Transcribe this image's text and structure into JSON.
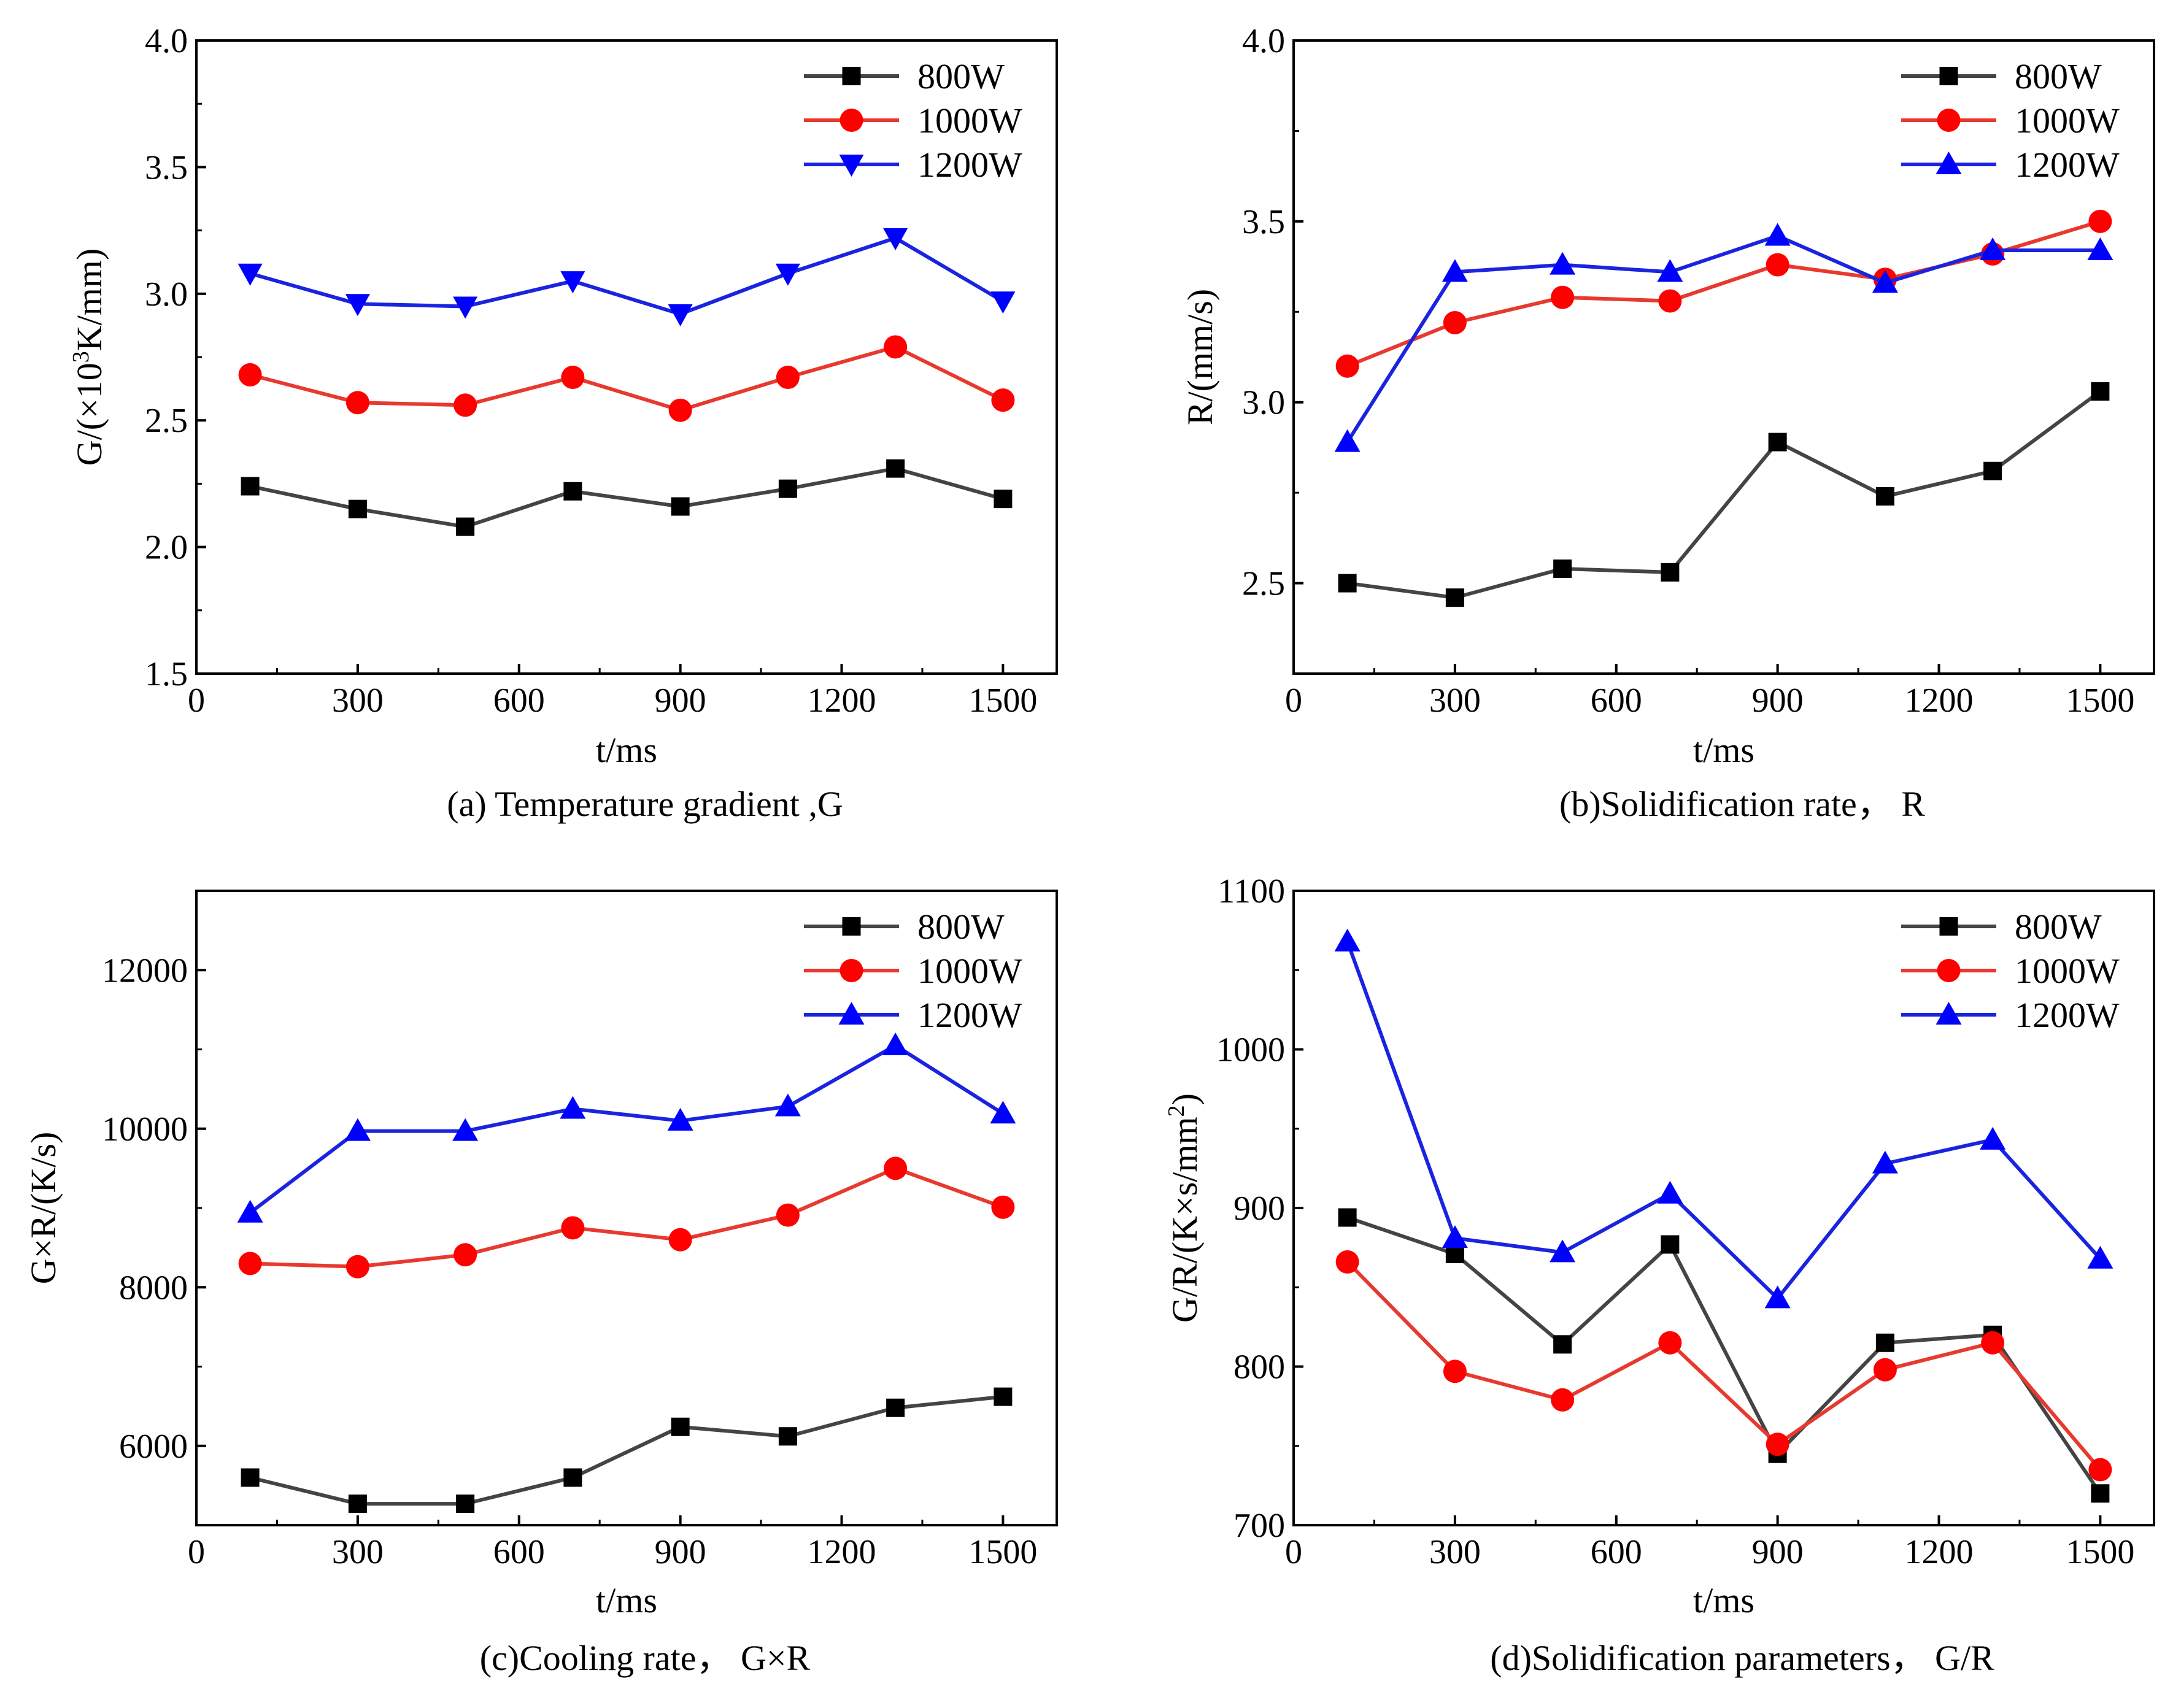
{
  "chart_data": [
    {
      "type": "line",
      "caption": "(a) Temperature gradient ,G",
      "xlabel": "t/ms",
      "ylabel_parts": [
        "G/(×10",
        "3",
        "K/mm)"
      ],
      "xlim": [
        0,
        1600
      ],
      "ylim": [
        1.5,
        4.0
      ],
      "xticks": [
        0,
        300,
        600,
        900,
        1200,
        1500
      ],
      "xtick_labels": [
        "0",
        "300",
        "600",
        "900",
        "1200",
        "1500"
      ],
      "yticks": [
        1.5,
        2.0,
        2.5,
        3.0,
        3.5,
        4.0
      ],
      "ytick_labels": [
        "1.5",
        "2.0",
        "2.5",
        "3.0",
        "3.5",
        "4.0"
      ],
      "x": [
        100,
        300,
        500,
        700,
        900,
        1100,
        1300,
        1500
      ],
      "series": [
        {
          "name": "800W",
          "marker": "square",
          "values": [
            2.24,
            2.15,
            2.08,
            2.22,
            2.16,
            2.23,
            2.31,
            2.19
          ]
        },
        {
          "name": "1000W",
          "marker": "circle",
          "values": [
            2.68,
            2.57,
            2.56,
            2.67,
            2.54,
            2.67,
            2.79,
            2.58
          ]
        },
        {
          "name": "1200W",
          "marker": "triangle-down",
          "values": [
            3.08,
            2.96,
            2.95,
            3.05,
            2.92,
            3.08,
            3.22,
            2.97
          ]
        }
      ]
    },
    {
      "type": "line",
      "caption": "(b)Solidification rate， R",
      "xlabel": "t/ms",
      "ylabel_parts": [
        "R/(mm/s)"
      ],
      "xlim": [
        0,
        1600
      ],
      "ylim": [
        2.25,
        4.0
      ],
      "xticks": [
        0,
        300,
        600,
        900,
        1200,
        1500
      ],
      "xtick_labels": [
        "0",
        "300",
        "600",
        "900",
        "1200",
        "1500"
      ],
      "yticks": [
        2.5,
        3.0,
        3.5,
        4.0
      ],
      "ytick_labels": [
        "2.5",
        "3.0",
        "3.5",
        "4.0"
      ],
      "x": [
        100,
        300,
        500,
        700,
        900,
        1100,
        1300,
        1500
      ],
      "series": [
        {
          "name": "800W",
          "marker": "square",
          "values": [
            2.5,
            2.46,
            2.54,
            2.53,
            2.89,
            2.74,
            2.81,
            3.03
          ]
        },
        {
          "name": "1000W",
          "marker": "circle",
          "values": [
            3.1,
            3.22,
            3.29,
            3.28,
            3.38,
            3.34,
            3.41,
            3.5
          ]
        },
        {
          "name": "1200W",
          "marker": "triangle-up",
          "values": [
            2.89,
            3.36,
            3.38,
            3.36,
            3.46,
            3.33,
            3.42,
            3.42
          ]
        }
      ]
    },
    {
      "type": "line",
      "caption": "(c)Cooling rate， G×R",
      "xlabel": "t/ms",
      "ylabel_parts": [
        "G×R/(K/s)"
      ],
      "xlim": [
        0,
        1600
      ],
      "ylim": [
        5000,
        13000
      ],
      "xticks": [
        0,
        300,
        600,
        900,
        1200,
        1500
      ],
      "xtick_labels": [
        "0",
        "300",
        "600",
        "900",
        "1200",
        "1500"
      ],
      "yticks": [
        6000,
        8000,
        10000,
        12000
      ],
      "ytick_labels": [
        "6000",
        "8000",
        "10000",
        "12000"
      ],
      "x": [
        100,
        300,
        500,
        700,
        900,
        1100,
        1300,
        1500
      ],
      "series": [
        {
          "name": "800W",
          "marker": "square",
          "values": [
            5600,
            5270,
            5270,
            5600,
            6240,
            6120,
            6480,
            6620
          ]
        },
        {
          "name": "1000W",
          "marker": "circle",
          "values": [
            8300,
            8260,
            8410,
            8750,
            8600,
            8910,
            9500,
            9010
          ]
        },
        {
          "name": "1200W",
          "marker": "triangle-up",
          "values": [
            8940,
            9970,
            9970,
            10250,
            10100,
            10280,
            11050,
            10190
          ]
        }
      ]
    },
    {
      "type": "line",
      "caption": "(d)Solidification parameters， G/R",
      "xlabel": "t/ms",
      "ylabel_parts": [
        "G/R/(K×s/mm",
        "2",
        ")"
      ],
      "xlim": [
        0,
        1600
      ],
      "ylim": [
        700,
        1100
      ],
      "xticks": [
        0,
        300,
        600,
        900,
        1200,
        1500
      ],
      "xtick_labels": [
        "0",
        "300",
        "600",
        "900",
        "1200",
        "1500"
      ],
      "yticks": [
        700,
        800,
        900,
        1000,
        1100
      ],
      "ytick_labels": [
        "700",
        "800",
        "900",
        "1000",
        "1100"
      ],
      "x": [
        100,
        300,
        500,
        700,
        900,
        1100,
        1300,
        1500
      ],
      "series": [
        {
          "name": "800W",
          "marker": "square",
          "values": [
            894,
            871,
            814,
            877,
            745,
            815,
            820,
            720
          ]
        },
        {
          "name": "1000W",
          "marker": "circle",
          "values": [
            866,
            797,
            779,
            815,
            751,
            798,
            815,
            735
          ]
        },
        {
          "name": "1200W",
          "marker": "triangle-up",
          "values": [
            1068,
            881,
            872,
            909,
            843,
            928,
            943,
            868
          ]
        }
      ]
    }
  ],
  "legend": {
    "entries": [
      "800W",
      "1000W",
      "1200W"
    ],
    "placement": "top-right"
  },
  "colors": {
    "800W": "#444444",
    "1000W": "#e8392f",
    "1200W": "#1a24e0",
    "marker_800W": "#000000",
    "marker_1000W": "#ff0000",
    "marker_1200W": "#0000ff"
  }
}
